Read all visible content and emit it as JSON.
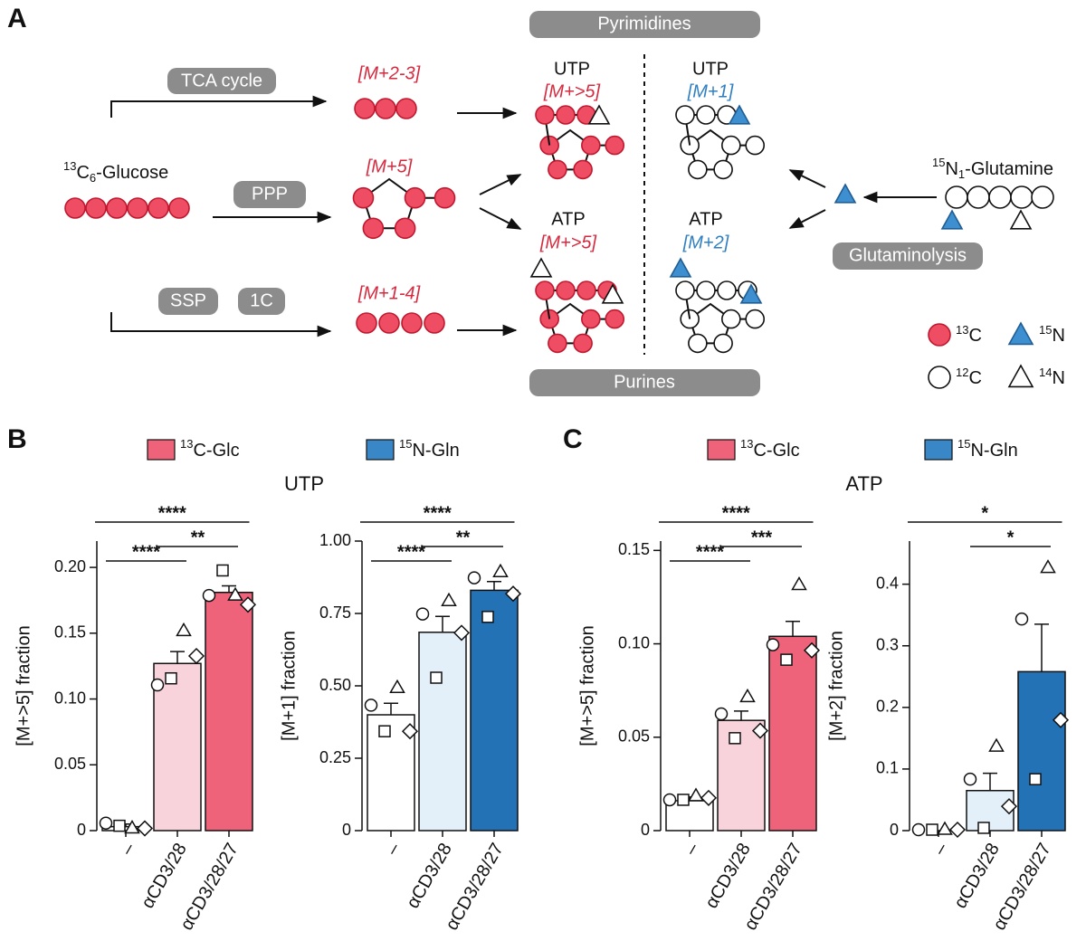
{
  "panels": [
    "A",
    "B",
    "C"
  ],
  "diagram": {
    "pathways": [
      "TCA cycle",
      "PPP",
      "SSP",
      "1C",
      "Glutaminolysis"
    ],
    "groups": [
      "Pyrimidines",
      "Purines"
    ],
    "isotopologues": [
      "[M+2-3]",
      "[M+5]",
      "[M+1-4]"
    ],
    "nucleotides": [
      {
        "name": "UTP",
        "label": "[M+>5]"
      },
      {
        "name": "UTP",
        "label": "[M+1]"
      },
      {
        "name": "ATP",
        "label": "[M+>5]"
      },
      {
        "name": "ATP",
        "label": "[M+2]"
      }
    ],
    "glucose": {
      "sup": "13",
      "base": "C",
      "sub": "6",
      "rest": "-Glucose"
    },
    "glutamine": {
      "sup": "15",
      "base": "N",
      "sub": "1",
      "rest": "-Glutamine"
    },
    "legend": [
      {
        "sup": "13",
        "text": "C"
      },
      {
        "sup": "15",
        "text": "N"
      },
      {
        "sup": "12",
        "text": "C"
      },
      {
        "sup": "14",
        "text": "N"
      }
    ]
  },
  "legends": [
    [
      {
        "sup": "13",
        "text": "C-Glc",
        "color": "#ee6379"
      },
      {
        "sup": "15",
        "text": "N-Gln",
        "color": "#3a87c8"
      }
    ],
    [
      {
        "sup": "13",
        "text": "C-Glc",
        "color": "#ee6379"
      },
      {
        "sup": "15",
        "text": "N-Gln",
        "color": "#3a87c8"
      }
    ]
  ],
  "group_titles": [
    "UTP",
    "ATP"
  ],
  "chart_data": [
    {
      "type": "bar",
      "ylabel": "[M+>5] fraction",
      "categories": [
        "–",
        "αCD3/28",
        "αCD3/28/27"
      ],
      "values": [
        0.003,
        0.127,
        0.181
      ],
      "errors": [
        0.002,
        0.009,
        0.005
      ],
      "colors": [
        "#ffffff",
        "#f9d3dc",
        "#ee6379"
      ],
      "points": [
        {
          "marker": "circle",
          "values": [
            0.005,
            0.11,
            0.178
          ]
        },
        {
          "marker": "square",
          "values": [
            0.003,
            0.115,
            0.197
          ]
        },
        {
          "marker": "triangle",
          "values": [
            0.001,
            0.151,
            0.178
          ]
        },
        {
          "marker": "diamond",
          "values": [
            0.001,
            0.132,
            0.171
          ]
        }
      ],
      "ylim": [
        0,
        0.22
      ],
      "yticks": [
        0,
        0.05,
        {
          "value": 0.1,
          "label": "0.10"
        },
        0.15,
        {
          "value": 0.2,
          "label": "0.20"
        }
      ],
      "significance": [
        {
          "from": 0,
          "to": 2,
          "label": "****"
        },
        {
          "from": 0,
          "to": 1,
          "label": "****"
        },
        {
          "from": 1,
          "to": 2,
          "label": "**"
        }
      ]
    },
    {
      "type": "bar",
      "ylabel": "[M+1] fraction",
      "categories": [
        "–",
        "αCD3/28",
        "αCD3/28/27"
      ],
      "values": [
        0.4,
        0.685,
        0.83
      ],
      "errors": [
        0.04,
        0.055,
        0.03
      ],
      "colors": [
        "#ffffff",
        "#e3f0fa",
        "#2272b5"
      ],
      "points": [
        {
          "marker": "circle",
          "values": [
            0.43,
            0.745,
            0.87
          ]
        },
        {
          "marker": "square",
          "values": [
            0.34,
            0.525,
            0.735
          ]
        },
        {
          "marker": "triangle",
          "values": [
            0.49,
            0.79,
            0.89
          ]
        },
        {
          "marker": "diamond",
          "values": [
            0.34,
            0.68,
            0.815
          ]
        }
      ],
      "ylim": [
        0,
        1
      ],
      "yticks": [
        0,
        0.25,
        {
          "value": 0.5,
          "label": "0.50"
        },
        0.75,
        {
          "value": 1,
          "label": "1.00"
        }
      ],
      "significance": [
        {
          "from": 0,
          "to": 2,
          "label": "****"
        },
        {
          "from": 0,
          "to": 1,
          "label": "****"
        },
        {
          "from": 1,
          "to": 2,
          "label": "**"
        }
      ]
    },
    {
      "type": "bar",
      "ylabel": "[M+>5] fraction",
      "categories": [
        "–",
        "αCD3/28",
        "αCD3/28/27"
      ],
      "values": [
        0.016,
        0.059,
        0.104
      ],
      "errors": [
        0.002,
        0.005,
        0.008
      ],
      "colors": [
        "#ffffff",
        "#f9d3dc",
        "#ee6379"
      ],
      "points": [
        {
          "marker": "circle",
          "values": [
            0.016,
            0.062,
            0.099
          ]
        },
        {
          "marker": "square",
          "values": [
            0.016,
            0.049,
            0.091
          ]
        },
        {
          "marker": "triangle",
          "values": [
            0.018,
            0.071,
            0.131
          ]
        },
        {
          "marker": "diamond",
          "values": [
            0.017,
            0.053,
            0.096
          ]
        }
      ],
      "ylim": [
        0,
        0.155
      ],
      "yticks": [
        0,
        0.05,
        {
          "value": 0.1,
          "label": "0.10"
        },
        0.15
      ],
      "significance": [
        {
          "from": 0,
          "to": 2,
          "label": "****"
        },
        {
          "from": 0,
          "to": 1,
          "label": "****"
        },
        {
          "from": 1,
          "to": 2,
          "label": "***"
        }
      ]
    },
    {
      "type": "bar",
      "ylabel": "[M+2] fraction",
      "categories": [
        "–",
        "αCD3/28",
        "αCD3/28/27"
      ],
      "values": [
        0.0,
        0.065,
        0.258
      ],
      "errors": [
        0,
        0.028,
        0.077
      ],
      "colors": [
        "#ffffff",
        "#e3f0fa",
        "#2272b5"
      ],
      "points": [
        {
          "marker": "circle",
          "values": [
            0.0,
            0.082,
            0.342
          ]
        },
        {
          "marker": "square",
          "values": [
            0.0,
            0.003,
            0.082
          ]
        },
        {
          "marker": "triangle",
          "values": [
            0.0,
            0.135,
            0.425
          ]
        },
        {
          "marker": "diamond",
          "values": [
            0.0,
            0.038,
            0.178
          ]
        }
      ],
      "ylim": [
        0,
        0.47
      ],
      "yticks": [
        0,
        0.1,
        0.2,
        0.3,
        0.4
      ],
      "significance": [
        {
          "from": 0,
          "to": 2,
          "label": "*"
        },
        {
          "from": 1,
          "to": 2,
          "label": "*"
        }
      ]
    }
  ]
}
